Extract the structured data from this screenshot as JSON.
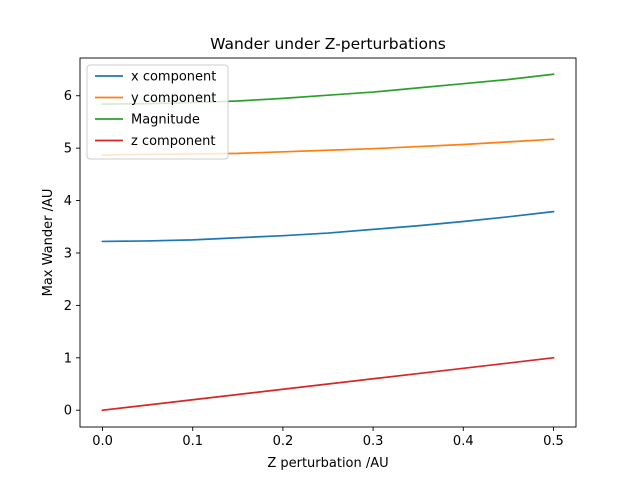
{
  "chart_data": {
    "type": "line",
    "title": "Wander under Z-perturbations",
    "xlabel": "Z perturbation /AU",
    "ylabel": "Max Wander /AU",
    "xlim": [
      -0.025,
      0.525
    ],
    "ylim": [
      -0.32,
      6.72
    ],
    "xticks": [
      0.0,
      0.1,
      0.2,
      0.3,
      0.4,
      0.5
    ],
    "xtick_labels": [
      "0.0",
      "0.1",
      "0.2",
      "0.3",
      "0.4",
      "0.5"
    ],
    "yticks": [
      0,
      1,
      2,
      3,
      4,
      5,
      6
    ],
    "ytick_labels": [
      "0",
      "1",
      "2",
      "3",
      "4",
      "5",
      "6"
    ],
    "grid": false,
    "legend_position": "top-left",
    "x": [
      0.0,
      0.05,
      0.1,
      0.15,
      0.2,
      0.25,
      0.3,
      0.35,
      0.4,
      0.45,
      0.5
    ],
    "series": [
      {
        "name": "x component",
        "color": "#1f77b4",
        "values": [
          3.22,
          3.23,
          3.25,
          3.29,
          3.33,
          3.38,
          3.45,
          3.52,
          3.6,
          3.69,
          3.79
        ]
      },
      {
        "name": "y component",
        "color": "#ff7f0e",
        "values": [
          4.87,
          4.88,
          4.89,
          4.9,
          4.93,
          4.96,
          4.99,
          5.03,
          5.07,
          5.12,
          5.17
        ]
      },
      {
        "name": "Magnitude",
        "color": "#2ca02c",
        "values": [
          5.84,
          5.85,
          5.87,
          5.9,
          5.95,
          6.01,
          6.07,
          6.15,
          6.23,
          6.31,
          6.41
        ]
      },
      {
        "name": "z component",
        "color": "#d62728",
        "values": [
          0.0,
          0.1,
          0.2,
          0.3,
          0.4,
          0.5,
          0.6,
          0.7,
          0.8,
          0.9,
          1.0
        ]
      }
    ]
  }
}
